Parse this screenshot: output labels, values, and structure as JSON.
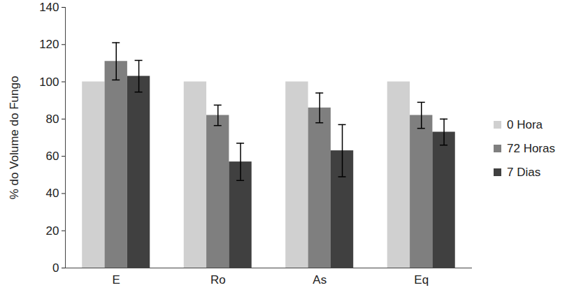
{
  "chart_data": {
    "type": "bar",
    "categories": [
      "E",
      "Ro",
      "As",
      "Eq"
    ],
    "y_label": "% do Volume do Fungo",
    "series": [
      {
        "name": "0 Hora",
        "color": "#d0d0d0",
        "values": [
          100,
          100,
          100,
          100
        ],
        "errors": [
          null,
          null,
          null,
          null
        ]
      },
      {
        "name": "72 Horas",
        "color": "#7f7f7f",
        "values": [
          111,
          82,
          86,
          82
        ],
        "errors": [
          10,
          5.5,
          8,
          7
        ]
      },
      {
        "name": "7 Dias",
        "color": "#404040",
        "values": [
          103,
          57,
          63,
          73
        ],
        "errors": [
          8.5,
          10,
          14,
          7
        ]
      }
    ],
    "ylim": [
      0,
      140
    ],
    "yticks": [
      0,
      20,
      40,
      60,
      80,
      100,
      120,
      140
    ],
    "grid": false,
    "legend": "right"
  }
}
